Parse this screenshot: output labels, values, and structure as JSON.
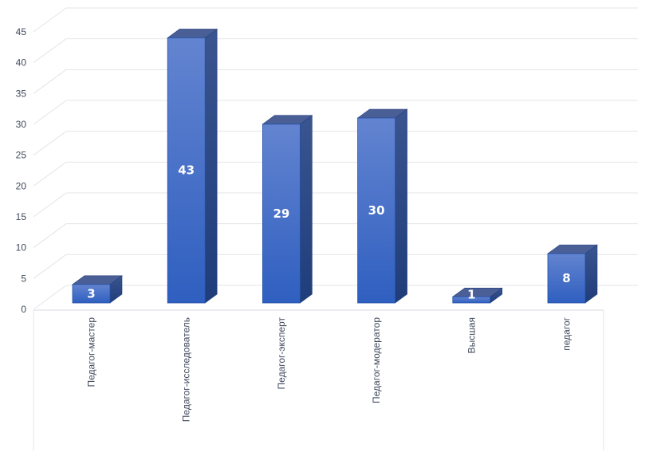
{
  "chart_data": {
    "type": "bar",
    "style": "3d-column",
    "categories": [
      "Педагог-мастер",
      "Педагог-исследователь",
      "Педагог-эксперт",
      "Педагог-модератор",
      "Высшая",
      "педагог"
    ],
    "values": [
      3,
      43,
      29,
      30,
      1,
      8
    ],
    "data_labels": [
      "3",
      "43",
      "29",
      "30",
      "1",
      "8"
    ],
    "ylim": [
      0,
      45
    ],
    "yticks": [
      0,
      5,
      10,
      15,
      20,
      25,
      30,
      35,
      40,
      45
    ],
    "ytick_labels": [
      "0",
      "5",
      "10",
      "15",
      "20",
      "25",
      "30",
      "35",
      "40",
      "45"
    ],
    "grid": true,
    "legend": "none",
    "colors": {
      "bar_top": "#6384d0",
      "bar_bottom": "#2f5fc0",
      "bar_side": "#2a4a8c",
      "bar_cap": "#4a5f96",
      "grid": "#e3e5ea",
      "text": "#404a5c"
    }
  }
}
